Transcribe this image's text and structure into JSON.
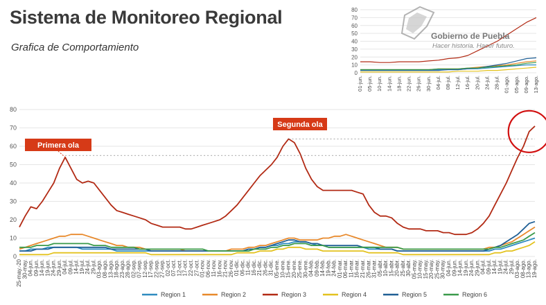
{
  "header": {
    "title": "Sistema de Monitoreo Regional",
    "subtitle": "Grafica de Comportamiento"
  },
  "logo": {
    "name": "Gobierno de Puebla",
    "tagline": "Hacer historia. Hacer futuro."
  },
  "chart_data": [
    {
      "type": "line",
      "y_ticks": [
        0,
        10,
        20,
        30,
        40,
        50,
        60,
        70,
        80
      ],
      "ylim": [
        0,
        80
      ],
      "x_labels": [
        "25-may.-20",
        "30-may.",
        "04-jun.",
        "09-jun.",
        "14-jun.",
        "19-jun.",
        "24-jun.",
        "29-jun.",
        "04-jul.",
        "09-jul.",
        "14-jul.",
        "19-jul.",
        "24-jul.",
        "29-jul.",
        "03-ago.",
        "08-ago.",
        "13-ago.",
        "18-ago.",
        "23-ago.",
        "28-ago.",
        "02-sep.",
        "07-sep.",
        "12-sep.",
        "17-sep.",
        "22-sep.",
        "27-sep.",
        "02-oct.",
        "07-oct.",
        "12-oct.",
        "17-oct.",
        "22-oct.",
        "27-oct.",
        "01-nov.",
        "06-nov.",
        "11-nov.",
        "16-nov.",
        "21-nov.",
        "26-nov.",
        "01-dic.",
        "06-dic.",
        "11-dic.",
        "16-dic.",
        "21-dic.",
        "26-dic.",
        "31-dic.",
        "05-ene.",
        "10-ene.",
        "15-ene.",
        "20-ene.",
        "25-ene.",
        "30-ene.",
        "04-feb.",
        "09-feb.",
        "14-feb.",
        "19-feb.",
        "24-feb.",
        "01-mar.",
        "06-mar.",
        "11-mar.",
        "16-mar.",
        "21-mar.",
        "26-mar.",
        "31-mar.",
        "05-abr.",
        "10-abr.",
        "15-abr.",
        "20-abr.",
        "25-abr.",
        "30-abr.",
        "05-may.",
        "10-may.",
        "15-may.",
        "20-may.",
        "25-may.",
        "30-may.",
        "04-jun.",
        "09-jun.",
        "14-jun.",
        "19-jun.",
        "24-jun.",
        "29-jun.",
        "04-jul.",
        "09-jul.",
        "14-jul.",
        "19-jul.",
        "24-jul.",
        "29-jul.",
        "03-ago.",
        "08-ago.",
        "13-ago.",
        "19-ago."
      ],
      "annotations": [
        "Primera ola",
        "Segunda ola"
      ],
      "series": [
        {
          "name": "Region 1",
          "color": "#2e8bc0",
          "values": [
            3,
            3,
            4,
            4,
            4,
            5,
            5,
            5,
            5,
            5,
            5,
            4,
            4,
            4,
            4,
            4,
            4,
            3,
            3,
            3,
            3,
            3,
            3,
            3,
            3,
            3,
            3,
            3,
            3,
            3,
            3,
            3,
            3,
            3,
            3,
            3,
            3,
            3,
            3,
            3,
            4,
            4,
            5,
            5,
            6,
            6,
            7,
            7,
            8,
            8,
            8,
            7,
            6,
            6,
            5,
            5,
            5,
            5,
            5,
            5,
            5,
            4,
            4,
            4,
            4,
            4,
            3,
            3,
            3,
            3,
            3,
            3,
            3,
            3,
            3,
            3,
            3,
            3,
            3,
            3,
            3,
            3,
            3,
            4,
            4,
            5,
            6,
            7,
            8,
            9,
            10
          ]
        },
        {
          "name": "Region 2",
          "color": "#e8892b",
          "values": [
            4,
            5,
            6,
            7,
            8,
            9,
            10,
            11,
            11,
            12,
            12,
            12,
            11,
            10,
            9,
            8,
            7,
            6,
            6,
            5,
            5,
            5,
            4,
            4,
            4,
            4,
            4,
            4,
            4,
            3,
            3,
            3,
            3,
            3,
            3,
            3,
            3,
            4,
            4,
            4,
            5,
            5,
            6,
            6,
            7,
            8,
            9,
            10,
            10,
            9,
            9,
            9,
            9,
            10,
            10,
            11,
            11,
            12,
            11,
            10,
            9,
            8,
            7,
            6,
            5,
            5,
            5,
            4,
            4,
            4,
            4,
            4,
            4,
            4,
            4,
            4,
            4,
            4,
            4,
            4,
            4,
            4,
            5,
            5,
            6,
            7,
            8,
            10,
            12,
            14,
            16
          ]
        },
        {
          "name": "Region 3",
          "color": "#b22a14",
          "values": [
            16,
            22,
            27,
            26,
            30,
            35,
            40,
            48,
            54,
            48,
            42,
            40,
            41,
            40,
            36,
            32,
            28,
            25,
            24,
            23,
            22,
            21,
            20,
            18,
            17,
            16,
            16,
            16,
            16,
            15,
            15,
            16,
            17,
            18,
            19,
            20,
            22,
            25,
            28,
            32,
            36,
            40,
            44,
            47,
            50,
            54,
            60,
            64,
            62,
            56,
            48,
            42,
            38,
            36,
            36,
            36,
            36,
            36,
            36,
            35,
            34,
            28,
            24,
            22,
            22,
            21,
            18,
            16,
            15,
            15,
            15,
            14,
            14,
            14,
            13,
            13,
            12,
            12,
            12,
            13,
            15,
            18,
            22,
            28,
            34,
            40,
            47,
            54,
            60,
            68,
            71
          ]
        },
        {
          "name": "Region 4",
          "color": "#e3c21e",
          "values": [
            1,
            1,
            1,
            1,
            1,
            1,
            2,
            2,
            2,
            2,
            2,
            2,
            2,
            2,
            2,
            2,
            2,
            2,
            2,
            2,
            2,
            2,
            2,
            1,
            1,
            1,
            1,
            1,
            1,
            1,
            1,
            1,
            1,
            1,
            1,
            1,
            1,
            1,
            2,
            2,
            2,
            2,
            3,
            3,
            3,
            4,
            4,
            5,
            5,
            5,
            4,
            4,
            4,
            3,
            3,
            3,
            3,
            3,
            3,
            3,
            3,
            2,
            2,
            2,
            2,
            2,
            2,
            1,
            1,
            1,
            1,
            1,
            1,
            1,
            1,
            1,
            1,
            1,
            1,
            1,
            1,
            1,
            1,
            2,
            2,
            3,
            3,
            4,
            5,
            6,
            8
          ]
        },
        {
          "name": "Region 5",
          "color": "#1f5f95",
          "values": [
            3,
            3,
            3,
            4,
            4,
            4,
            5,
            5,
            5,
            5,
            5,
            5,
            5,
            5,
            5,
            5,
            4,
            4,
            4,
            4,
            4,
            4,
            4,
            3,
            3,
            3,
            3,
            3,
            3,
            3,
            3,
            3,
            3,
            3,
            3,
            3,
            3,
            3,
            3,
            3,
            4,
            4,
            5,
            5,
            6,
            7,
            8,
            9,
            9,
            8,
            8,
            7,
            7,
            6,
            6,
            6,
            6,
            6,
            6,
            6,
            5,
            5,
            5,
            4,
            4,
            4,
            3,
            3,
            3,
            3,
            3,
            3,
            3,
            3,
            3,
            3,
            3,
            3,
            3,
            3,
            3,
            3,
            4,
            5,
            6,
            8,
            10,
            12,
            15,
            18,
            19
          ]
        },
        {
          "name": "Region 6",
          "color": "#3a9a4a",
          "values": [
            5,
            5,
            5,
            6,
            6,
            6,
            7,
            7,
            7,
            7,
            7,
            7,
            7,
            6,
            6,
            6,
            5,
            5,
            5,
            5,
            5,
            4,
            4,
            4,
            4,
            4,
            4,
            4,
            4,
            4,
            4,
            4,
            4,
            3,
            3,
            3,
            3,
            3,
            3,
            3,
            3,
            4,
            4,
            4,
            5,
            5,
            6,
            6,
            7,
            7,
            7,
            6,
            6,
            6,
            5,
            5,
            5,
            5,
            5,
            5,
            5,
            5,
            5,
            5,
            5,
            5,
            5,
            4,
            4,
            4,
            4,
            4,
            4,
            4,
            4,
            4,
            4,
            4,
            4,
            4,
            4,
            4,
            4,
            5,
            5,
            6,
            7,
            8,
            9,
            11,
            13
          ]
        }
      ]
    },
    {
      "type": "line",
      "y_ticks": [
        0,
        10,
        20,
        30,
        40,
        50,
        60,
        70,
        80
      ],
      "ylim": [
        0,
        80
      ],
      "x_labels": [
        "01-jun.",
        "05-jun.",
        "10-jun.",
        "14-jun.",
        "18-jun.",
        "22-jun.",
        "26-jun.",
        "30-jun.",
        "04-jul.",
        "08-jul.",
        "12-jul.",
        "16-jul.",
        "20-jul.",
        "24-jul.",
        "28-jul.",
        "01-ago.",
        "05-ago.",
        "09-ago.",
        "13-ago."
      ],
      "series": [
        {
          "name": "Region 1",
          "color": "#2e8bc0",
          "values": [
            4,
            4,
            4,
            4,
            4,
            4,
            4,
            4,
            4,
            4,
            4,
            5,
            5,
            6,
            7,
            8,
            9,
            10,
            10
          ]
        },
        {
          "name": "Region 2",
          "color": "#e8892b",
          "values": [
            4,
            4,
            4,
            4,
            4,
            4,
            4,
            4,
            5,
            5,
            5,
            6,
            7,
            8,
            9,
            10,
            12,
            14,
            15
          ]
        },
        {
          "name": "Region 3",
          "color": "#b22a14",
          "values": [
            14,
            14,
            13,
            13,
            14,
            14,
            14,
            15,
            16,
            18,
            19,
            22,
            28,
            34,
            40,
            48,
            56,
            64,
            70
          ]
        },
        {
          "name": "Region 4",
          "color": "#e3c21e",
          "values": [
            1,
            1,
            1,
            1,
            1,
            1,
            1,
            1,
            1,
            1,
            2,
            2,
            2,
            3,
            3,
            4,
            5,
            6,
            7
          ]
        },
        {
          "name": "Region 5",
          "color": "#1f5f95",
          "values": [
            3,
            3,
            3,
            3,
            3,
            3,
            3,
            3,
            3,
            4,
            4,
            5,
            6,
            8,
            10,
            12,
            15,
            18,
            19
          ]
        },
        {
          "name": "Region 6",
          "color": "#3a9a4a",
          "values": [
            4,
            4,
            4,
            4,
            4,
            4,
            4,
            4,
            5,
            5,
            5,
            6,
            6,
            7,
            8,
            9,
            10,
            12,
            13
          ]
        }
      ]
    }
  ]
}
